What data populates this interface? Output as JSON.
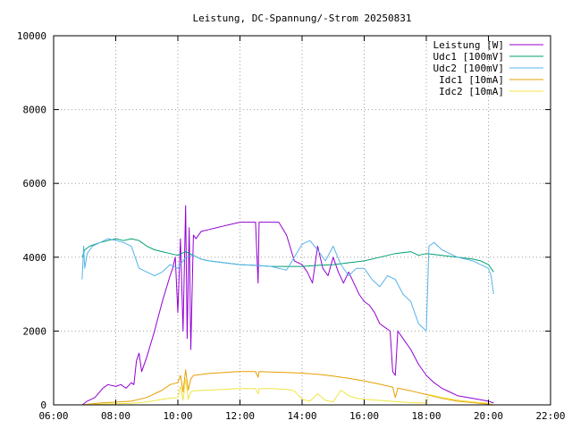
{
  "chart_data": {
    "type": "line",
    "title": "Leistung, DC-Spannung/-Strom 20250831",
    "xlabel": "",
    "ylabel": "",
    "xlim": [
      "06:00",
      "22:00"
    ],
    "ylim": [
      0,
      10000
    ],
    "x_ticks": [
      "06:00",
      "08:00",
      "10:00",
      "12:00",
      "14:00",
      "16:00",
      "18:00",
      "20:00",
      "22:00"
    ],
    "y_ticks": [
      "0",
      "2000",
      "4000",
      "6000",
      "8000",
      "10000"
    ],
    "grid": true,
    "legend_position": "top-right",
    "series": [
      {
        "name": "Leistung [W]",
        "color": "#9400d3",
        "points": [
          [
            "06:55",
            0
          ],
          [
            "07:05",
            100
          ],
          [
            "07:20",
            200
          ],
          [
            "07:35",
            450
          ],
          [
            "07:45",
            550
          ],
          [
            "08:00",
            500
          ],
          [
            "08:10",
            550
          ],
          [
            "08:20",
            450
          ],
          [
            "08:30",
            600
          ],
          [
            "08:35",
            550
          ],
          [
            "08:40",
            1200
          ],
          [
            "08:45",
            1400
          ],
          [
            "08:50",
            900
          ],
          [
            "09:00",
            1300
          ],
          [
            "09:15",
            2000
          ],
          [
            "09:30",
            2800
          ],
          [
            "09:45",
            3500
          ],
          [
            "09:50",
            3700
          ],
          [
            "09:55",
            4000
          ],
          [
            "10:00",
            2500
          ],
          [
            "10:05",
            4500
          ],
          [
            "10:10",
            2000
          ],
          [
            "10:15",
            5400
          ],
          [
            "10:18",
            1800
          ],
          [
            "10:22",
            4800
          ],
          [
            "10:25",
            1500
          ],
          [
            "10:30",
            4600
          ],
          [
            "10:35",
            4500
          ],
          [
            "10:45",
            4700
          ],
          [
            "11:00",
            4750
          ],
          [
            "11:30",
            4850
          ],
          [
            "12:00",
            4950
          ],
          [
            "12:30",
            4950
          ],
          [
            "12:35",
            3300
          ],
          [
            "12:37",
            4950
          ],
          [
            "13:00",
            4950
          ],
          [
            "13:15",
            4950
          ],
          [
            "13:30",
            4600
          ],
          [
            "13:45",
            3900
          ],
          [
            "14:00",
            3800
          ],
          [
            "14:10",
            3600
          ],
          [
            "14:20",
            3300
          ],
          [
            "14:30",
            4300
          ],
          [
            "14:40",
            3700
          ],
          [
            "14:50",
            3500
          ],
          [
            "15:00",
            4000
          ],
          [
            "15:10",
            3600
          ],
          [
            "15:20",
            3300
          ],
          [
            "15:30",
            3600
          ],
          [
            "15:40",
            3300
          ],
          [
            "15:50",
            3000
          ],
          [
            "16:00",
            2800
          ],
          [
            "16:10",
            2700
          ],
          [
            "16:20",
            2500
          ],
          [
            "16:30",
            2200
          ],
          [
            "16:40",
            2100
          ],
          [
            "16:50",
            2000
          ],
          [
            "16:55",
            900
          ],
          [
            "17:00",
            800
          ],
          [
            "17:05",
            2000
          ],
          [
            "17:15",
            1800
          ],
          [
            "17:30",
            1500
          ],
          [
            "17:45",
            1100
          ],
          [
            "18:00",
            800
          ],
          [
            "18:15",
            600
          ],
          [
            "18:30",
            450
          ],
          [
            "18:45",
            350
          ],
          [
            "19:00",
            250
          ],
          [
            "19:20",
            200
          ],
          [
            "19:40",
            150
          ],
          [
            "20:00",
            100
          ],
          [
            "20:10",
            50
          ]
        ]
      },
      {
        "name": "Udc1 [100mV]",
        "color": "#009e73",
        "points": [
          [
            "06:55",
            4000
          ],
          [
            "07:00",
            4200
          ],
          [
            "07:10",
            4300
          ],
          [
            "07:30",
            4400
          ],
          [
            "07:45",
            4450
          ],
          [
            "08:00",
            4500
          ],
          [
            "08:15",
            4450
          ],
          [
            "08:30",
            4500
          ],
          [
            "08:45",
            4450
          ],
          [
            "09:00",
            4300
          ],
          [
            "09:15",
            4200
          ],
          [
            "09:30",
            4150
          ],
          [
            "09:45",
            4100
          ],
          [
            "10:00",
            4050
          ],
          [
            "10:15",
            4150
          ],
          [
            "10:30",
            4050
          ],
          [
            "10:45",
            3950
          ],
          [
            "11:00",
            3900
          ],
          [
            "11:30",
            3850
          ],
          [
            "12:00",
            3800
          ],
          [
            "12:30",
            3780
          ],
          [
            "13:00",
            3750
          ],
          [
            "13:30",
            3750
          ],
          [
            "14:00",
            3750
          ],
          [
            "14:30",
            3780
          ],
          [
            "15:00",
            3800
          ],
          [
            "15:30",
            3850
          ],
          [
            "16:00",
            3900
          ],
          [
            "16:30",
            4000
          ],
          [
            "17:00",
            4100
          ],
          [
            "17:30",
            4150
          ],
          [
            "17:45",
            4050
          ],
          [
            "18:00",
            4100
          ],
          [
            "18:30",
            4050
          ],
          [
            "19:00",
            4000
          ],
          [
            "19:30",
            3950
          ],
          [
            "19:45",
            3900
          ],
          [
            "20:00",
            3800
          ],
          [
            "20:10",
            3600
          ]
        ]
      },
      {
        "name": "Udc2 [100mV]",
        "color": "#56b4e9",
        "points": [
          [
            "06:55",
            3400
          ],
          [
            "06:58",
            4300
          ],
          [
            "07:00",
            3700
          ],
          [
            "07:05",
            4100
          ],
          [
            "07:15",
            4300
          ],
          [
            "07:30",
            4400
          ],
          [
            "07:45",
            4500
          ],
          [
            "08:00",
            4450
          ],
          [
            "08:15",
            4400
          ],
          [
            "08:30",
            4300
          ],
          [
            "08:45",
            3700
          ],
          [
            "09:00",
            3600
          ],
          [
            "09:15",
            3500
          ],
          [
            "09:30",
            3600
          ],
          [
            "09:45",
            3800
          ],
          [
            "10:00",
            3700
          ],
          [
            "10:15",
            4000
          ],
          [
            "10:30",
            4050
          ],
          [
            "10:45",
            3950
          ],
          [
            "11:00",
            3900
          ],
          [
            "11:30",
            3850
          ],
          [
            "12:00",
            3800
          ],
          [
            "12:30",
            3780
          ],
          [
            "13:00",
            3750
          ],
          [
            "13:30",
            3650
          ],
          [
            "13:45",
            4000
          ],
          [
            "14:00",
            4350
          ],
          [
            "14:15",
            4450
          ],
          [
            "14:30",
            4200
          ],
          [
            "14:45",
            3900
          ],
          [
            "15:00",
            4300
          ],
          [
            "15:15",
            3800
          ],
          [
            "15:30",
            3500
          ],
          [
            "15:45",
            3700
          ],
          [
            "16:00",
            3700
          ],
          [
            "16:15",
            3400
          ],
          [
            "16:30",
            3200
          ],
          [
            "16:45",
            3500
          ],
          [
            "17:00",
            3400
          ],
          [
            "17:15",
            3000
          ],
          [
            "17:30",
            2800
          ],
          [
            "17:45",
            2200
          ],
          [
            "18:00",
            2000
          ],
          [
            "18:05",
            4300
          ],
          [
            "18:15",
            4400
          ],
          [
            "18:30",
            4200
          ],
          [
            "18:45",
            4100
          ],
          [
            "19:00",
            4000
          ],
          [
            "19:30",
            3900
          ],
          [
            "19:45",
            3800
          ],
          [
            "20:00",
            3700
          ],
          [
            "20:05",
            3500
          ],
          [
            "20:10",
            3000
          ]
        ]
      },
      {
        "name": "Idc1 [10mA]",
        "color": "#e69f00",
        "points": [
          [
            "06:55",
            0
          ],
          [
            "07:30",
            50
          ],
          [
            "08:30",
            100
          ],
          [
            "09:00",
            200
          ],
          [
            "09:30",
            400
          ],
          [
            "09:45",
            550
          ],
          [
            "10:00",
            600
          ],
          [
            "10:05",
            800
          ],
          [
            "10:10",
            350
          ],
          [
            "10:15",
            950
          ],
          [
            "10:20",
            400
          ],
          [
            "10:25",
            700
          ],
          [
            "10:30",
            800
          ],
          [
            "11:00",
            850
          ],
          [
            "11:30",
            880
          ],
          [
            "12:00",
            900
          ],
          [
            "12:30",
            900
          ],
          [
            "12:35",
            750
          ],
          [
            "12:37",
            900
          ],
          [
            "13:00",
            890
          ],
          [
            "13:30",
            880
          ],
          [
            "14:00",
            860
          ],
          [
            "14:30",
            830
          ],
          [
            "15:00",
            780
          ],
          [
            "15:30",
            720
          ],
          [
            "16:00",
            650
          ],
          [
            "16:30",
            560
          ],
          [
            "16:55",
            480
          ],
          [
            "17:00",
            200
          ],
          [
            "17:05",
            450
          ],
          [
            "17:30",
            380
          ],
          [
            "18:00",
            280
          ],
          [
            "18:30",
            180
          ],
          [
            "19:00",
            100
          ],
          [
            "19:30",
            60
          ],
          [
            "20:00",
            20
          ],
          [
            "20:10",
            0
          ]
        ]
      },
      {
        "name": "Idc2 [10mA]",
        "color": "#f0e442",
        "points": [
          [
            "06:55",
            0
          ],
          [
            "07:30",
            20
          ],
          [
            "08:30",
            40
          ],
          [
            "09:00",
            80
          ],
          [
            "09:30",
            150
          ],
          [
            "09:45",
            180
          ],
          [
            "10:00",
            200
          ],
          [
            "10:05",
            500
          ],
          [
            "10:10",
            120
          ],
          [
            "10:15",
            700
          ],
          [
            "10:20",
            150
          ],
          [
            "10:25",
            350
          ],
          [
            "10:30",
            380
          ],
          [
            "11:00",
            400
          ],
          [
            "11:30",
            420
          ],
          [
            "12:00",
            440
          ],
          [
            "12:30",
            440
          ],
          [
            "12:35",
            300
          ],
          [
            "12:37",
            440
          ],
          [
            "13:00",
            440
          ],
          [
            "13:30",
            420
          ],
          [
            "13:45",
            380
          ],
          [
            "14:00",
            150
          ],
          [
            "14:15",
            100
          ],
          [
            "14:30",
            300
          ],
          [
            "14:45",
            120
          ],
          [
            "15:00",
            80
          ],
          [
            "15:15",
            400
          ],
          [
            "15:30",
            250
          ],
          [
            "15:45",
            180
          ],
          [
            "16:00",
            150
          ],
          [
            "16:30",
            120
          ],
          [
            "17:00",
            90
          ],
          [
            "17:30",
            60
          ],
          [
            "18:00",
            50
          ],
          [
            "18:05",
            280
          ],
          [
            "18:30",
            200
          ],
          [
            "19:00",
            130
          ],
          [
            "19:30",
            80
          ],
          [
            "20:00",
            40
          ],
          [
            "20:10",
            0
          ]
        ]
      }
    ]
  }
}
